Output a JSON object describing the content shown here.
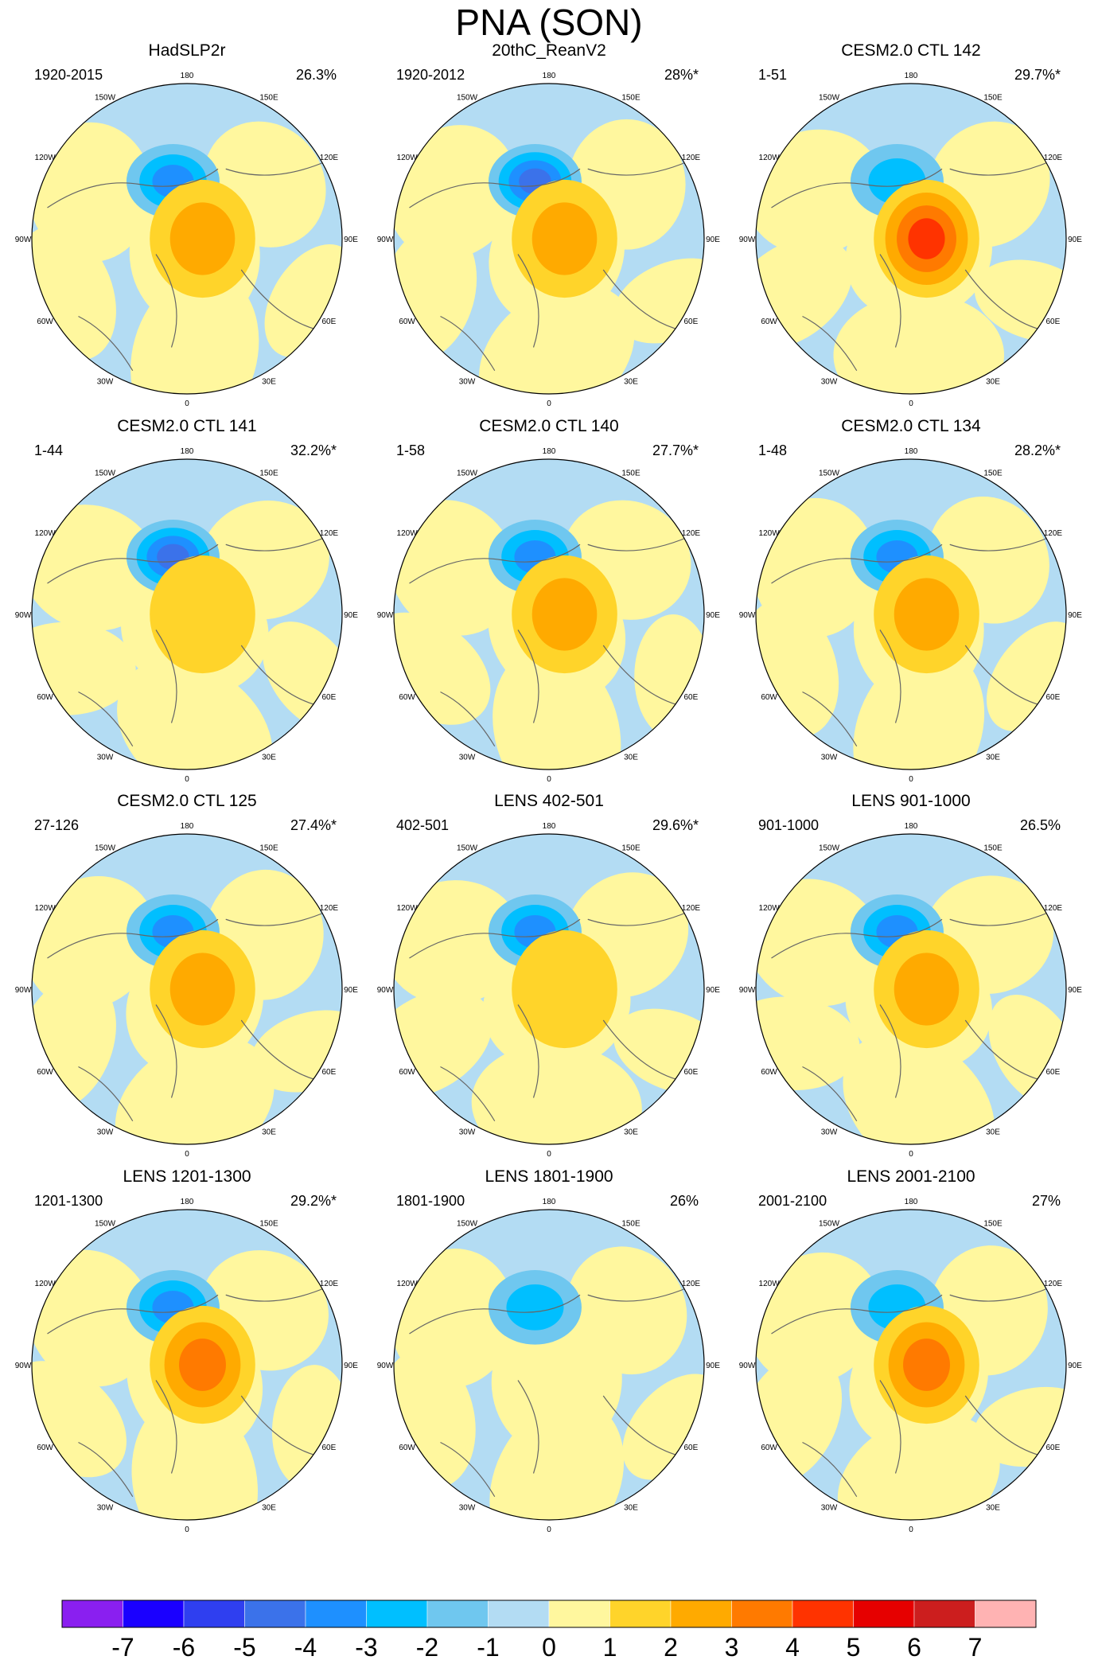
{
  "chart_data": {
    "type": "contour_map",
    "title": "PNA (SON)",
    "colorbar": {
      "labels": [
        "-7",
        "-6",
        "-5",
        "-4",
        "-3",
        "-2",
        "-1",
        "0",
        "1",
        "2",
        "3",
        "4",
        "5",
        "6",
        "7"
      ],
      "colors": [
        "#8a1ff0",
        "#1a00ff",
        "#2f3ff0",
        "#3b72ea",
        "#1e90ff",
        "#00bfff",
        "#6fc7ef",
        "#b3dcf3",
        "#fff79e",
        "#ffd42a",
        "#ffaa00",
        "#ff7a00",
        "#ff3300",
        "#e60000",
        "#cc1e1e",
        "#ffb3b3"
      ]
    },
    "lon_labels": [
      "180",
      "150E",
      "120E",
      "90E",
      "60E",
      "30E",
      "0",
      "30W",
      "60W",
      "90W",
      "120W",
      "150W"
    ],
    "panels": [
      {
        "title": "HadSLP2r",
        "period": "1920-2015",
        "variance": "26.3%",
        "low_min": -4.0,
        "high_max": 2.0
      },
      {
        "title": "20thC_ReanV2",
        "period": "1920-2012",
        "variance": "28%*",
        "low_min": -4.2,
        "high_max": 2.3
      },
      {
        "title": "CESM2.0 CTL 142",
        "period": "1-51",
        "variance": "29.7%*",
        "low_min": -2.4,
        "high_max": 4.6
      },
      {
        "title": "CESM2.0 CTL 141",
        "period": "1-44",
        "variance": "32.2%*",
        "low_min": -4.5,
        "high_max": 1.3
      },
      {
        "title": "CESM2.0 CTL 140",
        "period": "1-58",
        "variance": "27.7%*",
        "low_min": -3.8,
        "high_max": 2.8
      },
      {
        "title": "CESM2.0 CTL 134",
        "period": "1-48",
        "variance": "28.2%*",
        "low_min": -4.0,
        "high_max": 2.5
      },
      {
        "title": "CESM2.0 CTL 125",
        "period": "27-126",
        "variance": "27.4%*",
        "low_min": -4.0,
        "high_max": 2.2
      },
      {
        "title": "LENS 402-501",
        "period": "402-501",
        "variance": "29.6%*",
        "low_min": -3.5,
        "high_max": 1.2
      },
      {
        "title": "LENS 901-1000",
        "period": "901-1000",
        "variance": "26.5%",
        "low_min": -3.4,
        "high_max": 2.6
      },
      {
        "title": "LENS 1201-1300",
        "period": "1201-1300",
        "variance": "29.2%*",
        "low_min": -3.4,
        "high_max": 3.4
      },
      {
        "title": "LENS 1801-1900",
        "period": "1801-1900",
        "variance": "26%",
        "low_min": -2.6,
        "high_max": 0.9
      },
      {
        "title": "LENS 2001-2100",
        "period": "2001-2100",
        "variance": "27%",
        "low_min": -3.0,
        "high_max": 3.8
      }
    ]
  }
}
